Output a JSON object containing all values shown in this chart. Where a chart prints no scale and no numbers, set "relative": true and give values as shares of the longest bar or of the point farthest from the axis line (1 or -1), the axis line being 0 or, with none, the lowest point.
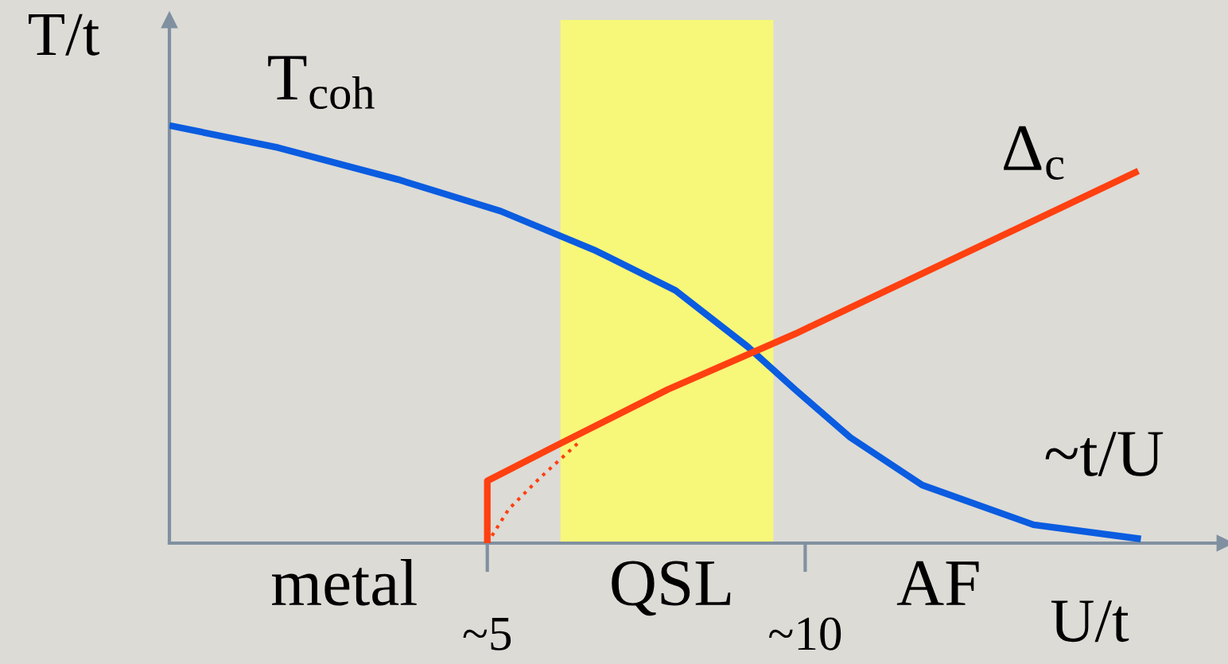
{
  "chart_data": {
    "type": "line",
    "relative": true,
    "ylabel": "T/t",
    "xlabel": "U/t",
    "xlim": [
      0,
      16.6
    ],
    "xticks": [
      {
        "value": 5,
        "label": "~5"
      },
      {
        "value": 10,
        "label": "~10"
      }
    ],
    "series": [
      {
        "name": "T$_{coh}$",
        "color": "#0a5ce0",
        "line_style": "solid",
        "x": [
          0,
          1.71,
          3.59,
          5.21,
          6.71,
          7.96,
          9.09,
          9.84,
          10.71,
          11.84,
          13.59,
          15.28
        ],
        "values": [
          1,
          0.947,
          0.871,
          0.795,
          0.7,
          0.605,
          0.471,
          0.368,
          0.253,
          0.139,
          0.044,
          0.01
        ]
      },
      {
        "name": "Δ$_{c}$",
        "color": "#ff4010",
        "line_style": "solid",
        "x": [
          5,
          5,
          6.09,
          7.84,
          9.84,
          15.24
        ],
        "values": [
          0,
          0.149,
          0.234,
          0.368,
          0.501,
          0.891
        ]
      },
      {
        "color": "#ff4010",
        "line_style": "dotted",
        "x": [
          5,
          5.34,
          5.84,
          6.46
        ],
        "values": [
          0,
          0.082,
          0.158,
          0.244
        ]
      }
    ],
    "bands": [
      {
        "axis": "x",
        "from": 6.15,
        "to": 9.5,
        "color": "#f7f77a"
      }
    ],
    "annotations": [
      "~t/U",
      "metal",
      "QSL",
      "AF"
    ],
    "legend": false,
    "grid": false
  }
}
